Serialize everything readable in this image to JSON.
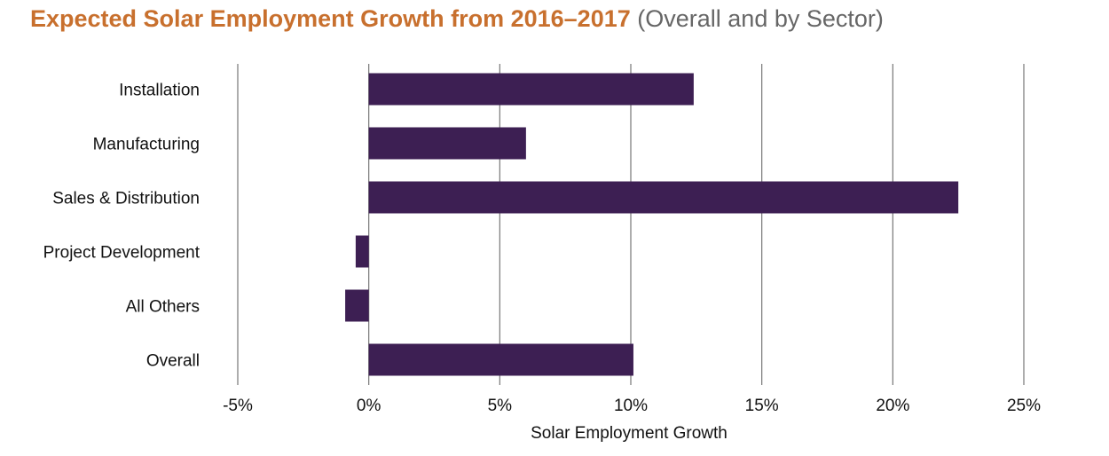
{
  "title": "Expected Solar Employment Growth from 2016–2017",
  "subtitle": "(Overall and by Sector)",
  "colors": {
    "bar": "#3d1f53",
    "grid": "#777777",
    "title": "#c8702e",
    "subtitle": "#666666"
  },
  "chart_data": {
    "type": "bar",
    "orientation": "horizontal",
    "categories": [
      "Installation",
      "Manufacturing",
      "Sales & Distribution",
      "Project Development",
      "All Others",
      "Overall"
    ],
    "values": [
      12.4,
      6.0,
      22.5,
      -0.5,
      -0.9,
      10.1
    ],
    "xlabel": "Solar Employment Growth",
    "xlim": [
      -5,
      25
    ],
    "xticks": [
      -5,
      0,
      5,
      10,
      15,
      20,
      25
    ],
    "xtick_labels": [
      "-5%",
      "0%",
      "5%",
      "10%",
      "15%",
      "20%",
      "25%"
    ],
    "grid": "vertical"
  }
}
